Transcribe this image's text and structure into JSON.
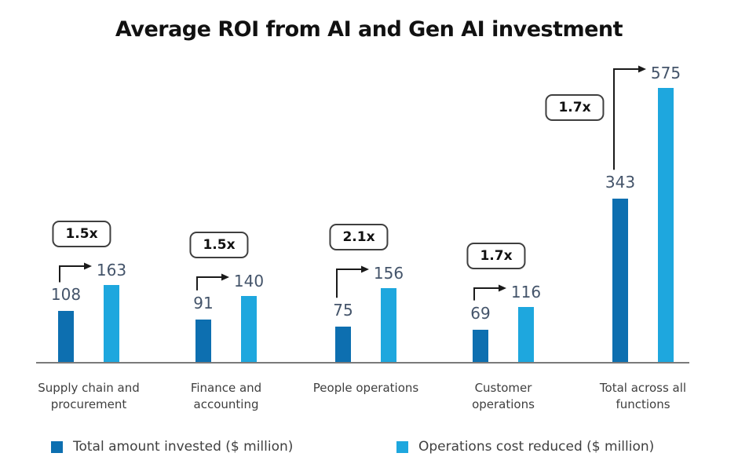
{
  "title": "Average ROI from AI and Gen AI investment",
  "colors": {
    "invested": "#0d6fb0",
    "reduced": "#1ea7de",
    "value_label": "#44546a",
    "category_label": "#3f3f3f",
    "axis_line": "#7a7a7a",
    "badge_border": "#3f3f3f",
    "badge_text": "#111111",
    "title_text": "#111111",
    "legend_text": "#404040",
    "arrow": "#1a1a1a"
  },
  "legend": [
    {
      "label": "Total amount invested ($ million)"
    },
    {
      "label": "Operations cost reduced ($ million)"
    }
  ],
  "chart_data": {
    "type": "bar",
    "title": "Average ROI from AI and Gen AI investment",
    "categories": [
      "Supply chain and procurement",
      "Finance and accounting",
      "People operations",
      "Customer operations",
      "Total across all functions"
    ],
    "series": [
      {
        "name": "Total amount invested ($ million)",
        "values": [
          108,
          91,
          75,
          69,
          343
        ]
      },
      {
        "name": "Operations cost reduced ($ million)",
        "values": [
          163,
          140,
          156,
          116,
          575
        ]
      }
    ],
    "multipliers": [
      "1.5x",
      "1.5x",
      "2.1x",
      "1.7x",
      "1.7x"
    ],
    "value_labels": true,
    "ylim": [
      0,
      575
    ],
    "grid": false,
    "axes_shown": [
      "x"
    ],
    "legend_position": "bottom"
  }
}
